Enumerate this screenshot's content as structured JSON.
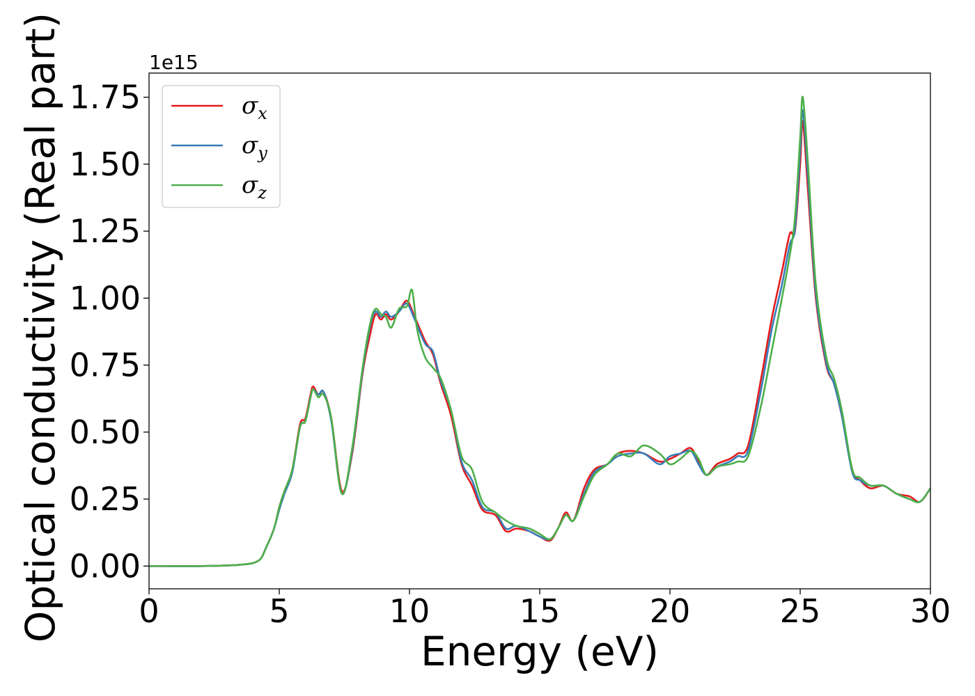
{
  "chart_data": {
    "type": "line",
    "xlabel": "Energy (eV)",
    "ylabel": "Optical conductivity (Real part)",
    "y_offset_label": "1e15",
    "xlim": [
      0,
      30
    ],
    "ylim": [
      -0.085,
      1.84
    ],
    "x_ticks": [
      "0",
      "5",
      "10",
      "15",
      "20",
      "25",
      "30"
    ],
    "y_ticks": [
      "0.00",
      "0.25",
      "0.50",
      "0.75",
      "1.00",
      "1.25",
      "1.50",
      "1.75"
    ],
    "grid": false,
    "legend_position": "top-left",
    "series": [
      {
        "name": "σ",
        "subscript": "x",
        "color": "#e41a1c",
        "x": [
          0,
          2,
          3.5,
          4.2,
          4.5,
          4.8,
          5.0,
          5.2,
          5.5,
          5.8,
          6.0,
          6.2,
          6.3,
          6.5,
          6.7,
          7.0,
          7.4,
          7.8,
          8.2,
          8.5,
          8.7,
          8.9,
          9.1,
          9.3,
          9.6,
          9.9,
          10.2,
          10.6,
          10.9,
          11.2,
          11.6,
          12.0,
          12.4,
          12.8,
          13.3,
          13.7,
          14.1,
          14.6,
          15.0,
          15.4,
          15.7,
          16.0,
          16.3,
          16.7,
          17.1,
          17.6,
          18.0,
          18.5,
          19.0,
          19.6,
          20.0,
          20.4,
          20.8,
          21.1,
          21.4,
          21.8,
          22.3,
          22.6,
          23.0,
          23.5,
          23.9,
          24.3,
          24.6,
          24.8,
          25.0,
          25.1,
          25.3,
          25.6,
          26.0,
          26.3,
          26.6,
          27.0,
          27.3,
          27.7,
          28.2,
          28.7,
          29.2,
          29.6,
          30.0
        ],
        "values": [
          0.0,
          0.0,
          0.005,
          0.02,
          0.07,
          0.14,
          0.22,
          0.28,
          0.36,
          0.53,
          0.55,
          0.64,
          0.67,
          0.64,
          0.65,
          0.55,
          0.28,
          0.42,
          0.72,
          0.87,
          0.94,
          0.92,
          0.94,
          0.92,
          0.95,
          0.99,
          0.93,
          0.84,
          0.79,
          0.68,
          0.56,
          0.38,
          0.3,
          0.21,
          0.19,
          0.13,
          0.14,
          0.13,
          0.11,
          0.095,
          0.14,
          0.2,
          0.17,
          0.29,
          0.36,
          0.38,
          0.42,
          0.43,
          0.42,
          0.39,
          0.4,
          0.42,
          0.44,
          0.39,
          0.34,
          0.38,
          0.4,
          0.42,
          0.45,
          0.7,
          0.92,
          1.1,
          1.24,
          1.25,
          1.5,
          1.66,
          1.4,
          1.0,
          0.75,
          0.68,
          0.56,
          0.36,
          0.32,
          0.29,
          0.3,
          0.27,
          0.26,
          0.24,
          0.29
        ]
      },
      {
        "name": "σ",
        "subscript": "y",
        "color": "#377eb8",
        "x": [
          0,
          2,
          3.5,
          4.2,
          4.5,
          4.8,
          5.0,
          5.2,
          5.5,
          5.8,
          6.0,
          6.2,
          6.3,
          6.5,
          6.7,
          7.0,
          7.4,
          7.8,
          8.2,
          8.5,
          8.7,
          8.9,
          9.1,
          9.3,
          9.6,
          9.9,
          10.2,
          10.6,
          10.9,
          11.2,
          11.6,
          12.0,
          12.4,
          12.8,
          13.3,
          13.7,
          14.1,
          14.6,
          15.0,
          15.4,
          15.7,
          16.0,
          16.3,
          16.7,
          17.1,
          17.6,
          18.0,
          18.5,
          19.0,
          19.6,
          20.0,
          20.4,
          20.8,
          21.1,
          21.4,
          21.8,
          22.3,
          22.6,
          23.0,
          23.5,
          23.9,
          24.3,
          24.6,
          24.8,
          25.0,
          25.1,
          25.3,
          25.6,
          26.0,
          26.3,
          26.6,
          27.0,
          27.3,
          27.7,
          28.2,
          28.7,
          29.2,
          29.6,
          30.0
        ],
        "values": [
          0.0,
          0.0,
          0.005,
          0.02,
          0.07,
          0.14,
          0.21,
          0.27,
          0.35,
          0.52,
          0.54,
          0.63,
          0.66,
          0.64,
          0.65,
          0.54,
          0.27,
          0.43,
          0.73,
          0.9,
          0.95,
          0.93,
          0.95,
          0.93,
          0.95,
          0.98,
          0.92,
          0.83,
          0.8,
          0.69,
          0.58,
          0.39,
          0.32,
          0.22,
          0.2,
          0.14,
          0.15,
          0.13,
          0.11,
          0.1,
          0.14,
          0.19,
          0.17,
          0.27,
          0.35,
          0.38,
          0.41,
          0.42,
          0.42,
          0.38,
          0.41,
          0.42,
          0.43,
          0.38,
          0.34,
          0.37,
          0.39,
          0.41,
          0.43,
          0.66,
          0.88,
          1.05,
          1.2,
          1.26,
          1.55,
          1.7,
          1.45,
          1.02,
          0.76,
          0.68,
          0.56,
          0.35,
          0.32,
          0.3,
          0.3,
          0.27,
          0.25,
          0.24,
          0.29
        ]
      },
      {
        "name": "σ",
        "subscript": "z",
        "color": "#4daf4a",
        "x": [
          0,
          2,
          3.5,
          4.2,
          4.5,
          4.8,
          5.0,
          5.2,
          5.5,
          5.8,
          6.0,
          6.2,
          6.3,
          6.5,
          6.7,
          7.0,
          7.4,
          7.8,
          8.2,
          8.5,
          8.7,
          8.9,
          9.1,
          9.3,
          9.6,
          9.9,
          10.1,
          10.3,
          10.6,
          10.9,
          11.2,
          11.6,
          12.0,
          12.4,
          12.8,
          13.3,
          13.7,
          14.1,
          14.6,
          15.0,
          15.4,
          15.7,
          16.0,
          16.3,
          16.7,
          17.1,
          17.6,
          18.0,
          18.5,
          19.0,
          19.6,
          20.0,
          20.4,
          20.8,
          21.1,
          21.4,
          21.8,
          22.3,
          22.6,
          23.0,
          23.5,
          23.9,
          24.3,
          24.6,
          24.8,
          25.0,
          25.1,
          25.3,
          25.6,
          26.0,
          26.3,
          26.6,
          27.0,
          27.3,
          27.7,
          28.2,
          28.7,
          29.2,
          29.6,
          30.0
        ],
        "values": [
          0.0,
          0.0,
          0.005,
          0.02,
          0.07,
          0.14,
          0.22,
          0.28,
          0.36,
          0.52,
          0.54,
          0.63,
          0.66,
          0.63,
          0.64,
          0.55,
          0.27,
          0.44,
          0.74,
          0.91,
          0.96,
          0.94,
          0.93,
          0.89,
          0.96,
          0.97,
          1.03,
          0.88,
          0.78,
          0.74,
          0.7,
          0.58,
          0.41,
          0.36,
          0.24,
          0.2,
          0.17,
          0.15,
          0.14,
          0.12,
          0.1,
          0.14,
          0.19,
          0.17,
          0.26,
          0.34,
          0.38,
          0.42,
          0.41,
          0.45,
          0.42,
          0.38,
          0.4,
          0.43,
          0.4,
          0.34,
          0.37,
          0.38,
          0.39,
          0.41,
          0.6,
          0.8,
          1.0,
          1.16,
          1.3,
          1.6,
          1.75,
          1.5,
          1.05,
          0.78,
          0.7,
          0.58,
          0.36,
          0.33,
          0.3,
          0.3,
          0.27,
          0.25,
          0.24,
          0.29
        ]
      }
    ]
  }
}
